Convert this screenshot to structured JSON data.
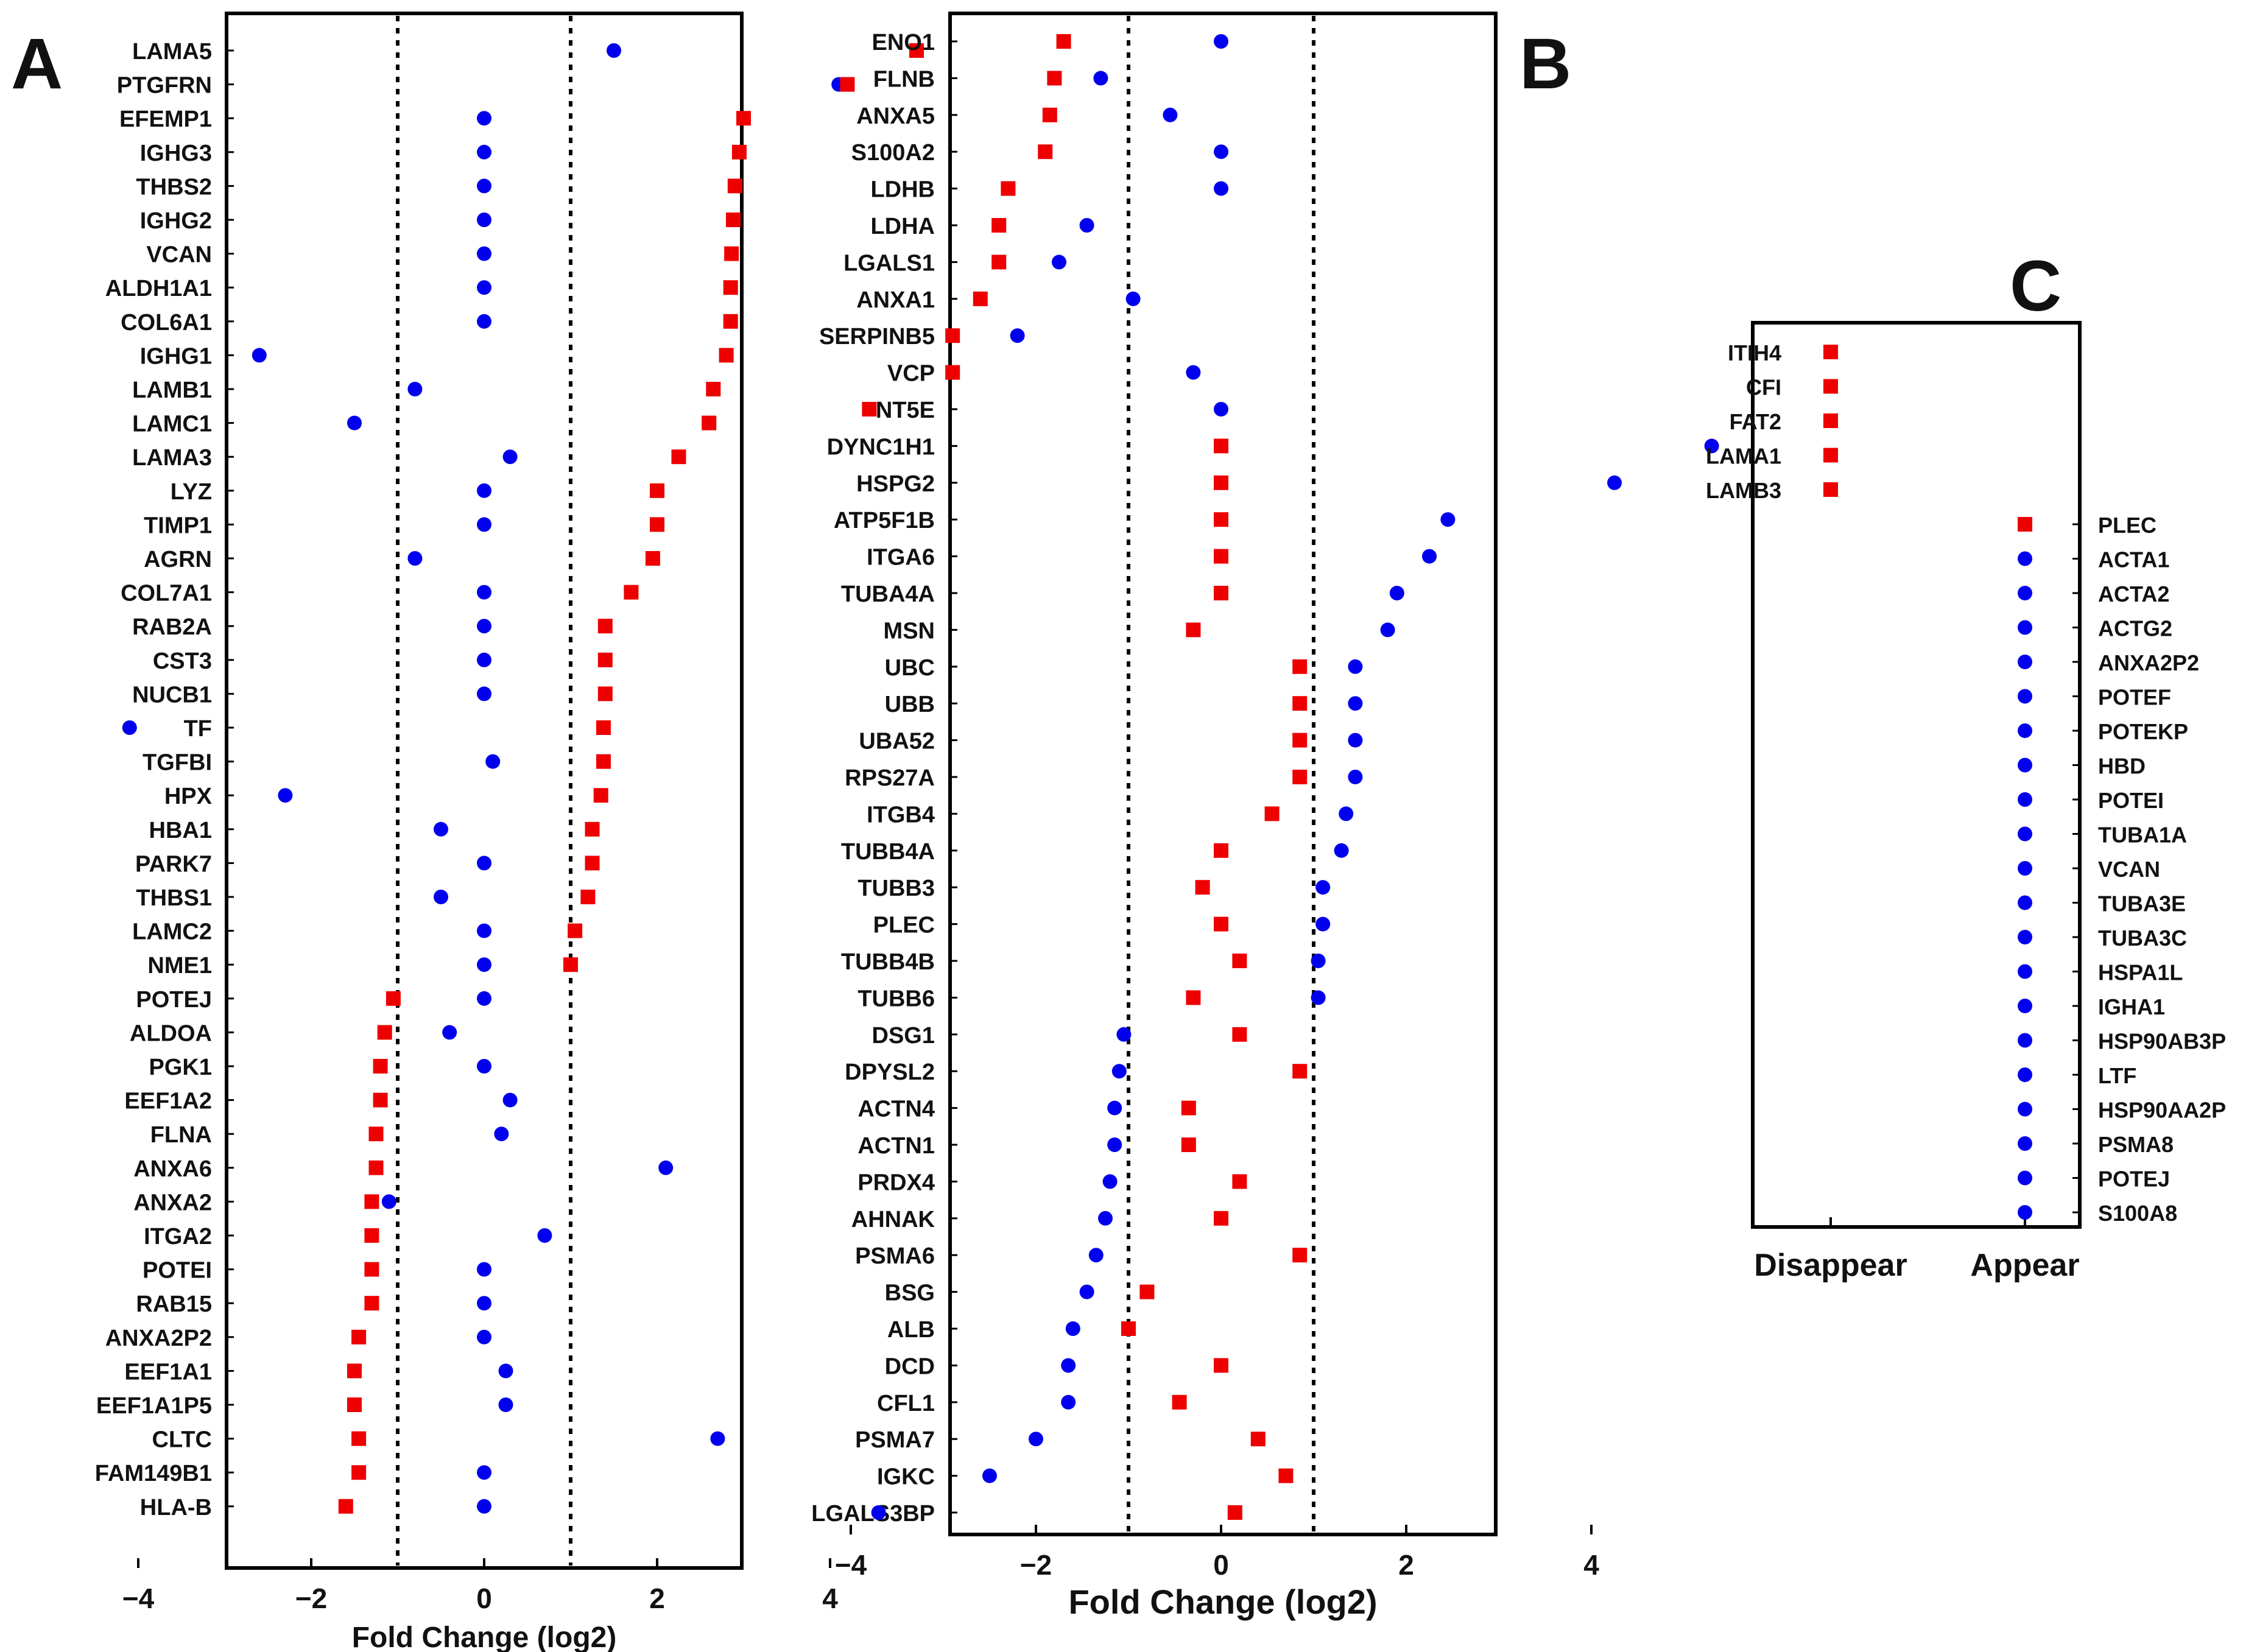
{
  "colors": {
    "series_a": "#ee0000",
    "series_b": "#0000ee",
    "axis": "#000000",
    "background": "#ffffff"
  },
  "chart_data": [
    {
      "panel_label": "A",
      "type": "scatter",
      "orientation": "horizontal",
      "xlabel": "Fold Change (log2)",
      "xlim": [
        -6,
        6
      ],
      "x_ticks": [
        -4,
        -2,
        0,
        2,
        4
      ],
      "x_tick_labels": [
        "−4",
        "−2",
        "0",
        "2",
        "4"
      ],
      "reference_lines": [
        -1,
        1
      ],
      "markers": {
        "red": "square",
        "blue": "circle"
      },
      "categories": [
        "LAMA5",
        "PTGFRN",
        "EFEMP1",
        "IGHG3",
        "THBS2",
        "IGHG2",
        "VCAN",
        "ALDH1A1",
        "COL6A1",
        "IGHG1",
        "LAMB1",
        "LAMC1",
        "LAMA3",
        "LYZ",
        "TIMP1",
        "AGRN",
        "COL7A1",
        "RAB2A",
        "CST3",
        "NUCB1",
        "TF",
        "TGFBI",
        "HPX",
        "HBA1",
        "PARK7",
        "THBS1",
        "LAMC2",
        "NME1",
        "POTEJ",
        "ALDOA",
        "PGK1",
        "EEF1A2",
        "FLNA",
        "ANXA6",
        "ANXA2",
        "ITGA2",
        "POTEI",
        "RAB15",
        "ANXA2P2",
        "EEF1A1",
        "EEF1A1P5",
        "CLTC",
        "FAM149B1",
        "HLA-B"
      ],
      "series": [
        {
          "values": [
            5.0,
            4.2,
            3.0,
            2.95,
            2.9,
            2.88,
            2.86,
            2.85,
            2.85,
            2.8,
            2.65,
            2.6,
            2.25,
            2.0,
            2.0,
            1.95,
            1.7,
            1.4,
            1.4,
            1.4,
            1.38,
            1.38,
            1.35,
            1.25,
            1.25,
            1.2,
            1.05,
            1.0,
            -1.05,
            -1.15,
            -1.2,
            -1.2,
            -1.25,
            -1.25,
            -1.3,
            -1.3,
            -1.3,
            -1.3,
            -1.45,
            -1.5,
            -1.5,
            -1.45,
            -1.45,
            -1.6
          ]
        },
        {
          "values": [
            1.5,
            4.1,
            0,
            0,
            0,
            0,
            0,
            0,
            0,
            -2.6,
            -0.8,
            -1.5,
            0.3,
            0,
            0,
            -0.8,
            0,
            0,
            0,
            0,
            -4.1,
            0.1,
            -2.3,
            -0.5,
            0,
            -0.5,
            0,
            0,
            0,
            -0.4,
            0,
            0.3,
            0.2,
            2.1,
            -1.1,
            0.7,
            0,
            0,
            0,
            0.25,
            0.25,
            2.7,
            0,
            0
          ]
        }
      ]
    },
    {
      "panel_label": "B",
      "type": "scatter",
      "orientation": "horizontal",
      "xlabel": "Fold Change (log2)",
      "xlim": [
        -6,
        6
      ],
      "x_ticks": [
        -4,
        -2,
        0,
        2,
        4
      ],
      "x_tick_labels": [
        "−4",
        "−2",
        "0",
        "2",
        "4"
      ],
      "reference_lines": [
        -1,
        1
      ],
      "markers": {
        "red": "square",
        "blue": "circle"
      },
      "categories": [
        "ENO1",
        "FLNB",
        "ANXA5",
        "S100A2",
        "LDHB",
        "LDHA",
        "LGALS1",
        "ANXA1",
        "SERPINB5",
        "VCP",
        "NT5E",
        "DYNC1H1",
        "HSPG2",
        "ATP5F1B",
        "ITGA6",
        "TUBA4A",
        "MSN",
        "UBC",
        "UBB",
        "UBA52",
        "RPS27A",
        "ITGB4",
        "TUBB4A",
        "TUBB3",
        "PLEC",
        "TUBB4B",
        "TUBB6",
        "DSG1",
        "DPYSL2",
        "ACTN4",
        "ACTN1",
        "PRDX4",
        "AHNAK",
        "PSMA6",
        "BSG",
        "ALB",
        "DCD",
        "CFL1",
        "PSMA7",
        "IGKC",
        "LGALS3BP"
      ],
      "series": [
        {
          "values": [
            -1.7,
            -1.8,
            -1.85,
            -1.9,
            -2.3,
            -2.4,
            -2.4,
            -2.6,
            -2.9,
            -2.9,
            -3.8,
            0,
            0,
            0,
            0,
            0,
            -0.3,
            0.85,
            0.85,
            0.85,
            0.85,
            0.55,
            0,
            -0.2,
            0,
            0.2,
            -0.3,
            0.2,
            0.85,
            -0.35,
            -0.35,
            0.2,
            0,
            0.85,
            -0.8,
            -1.0,
            0,
            -0.45,
            0.4,
            0.7,
            0.15
          ]
        },
        {
          "values": [
            0,
            -1.3,
            -0.55,
            0,
            0,
            -1.45,
            -1.75,
            -0.95,
            -2.2,
            -0.3,
            0,
            5.3,
            4.25,
            2.45,
            2.25,
            1.9,
            1.8,
            1.45,
            1.45,
            1.45,
            1.45,
            1.35,
            1.3,
            1.1,
            1.1,
            1.05,
            1.05,
            -1.05,
            -1.1,
            -1.15,
            -1.15,
            -1.2,
            -1.25,
            -1.35,
            -1.45,
            -1.6,
            -1.65,
            -1.65,
            -2.0,
            -2.5,
            -3.7
          ]
        }
      ]
    },
    {
      "panel_label": "C",
      "type": "scatter",
      "xlabel": "",
      "categories": [
        "Disappear",
        "Appear"
      ],
      "series": [
        {
          "category": "Disappear",
          "marker": "square",
          "labels": [
            "ITIH4",
            "CFI",
            "FAT2",
            "LAMA1",
            "LAMB3"
          ]
        },
        {
          "category": "Appear",
          "marker": "square",
          "labels": [
            "PLEC"
          ]
        },
        {
          "category": "Appear",
          "marker": "circle",
          "labels": [
            "ACTA1",
            "ACTA2",
            "ACTG2",
            "ANXA2P2",
            "POTEF",
            "POTEKP",
            "HBD",
            "POTEI",
            "TUBA1A",
            "VCAN",
            "TUBA3E",
            "TUBA3C",
            "HSPA1L",
            "IGHA1",
            "HSP90AB3P",
            "LTF",
            "HSP90AA2P",
            "PSMA8",
            "POTEJ",
            "S100A8"
          ]
        }
      ]
    }
  ]
}
